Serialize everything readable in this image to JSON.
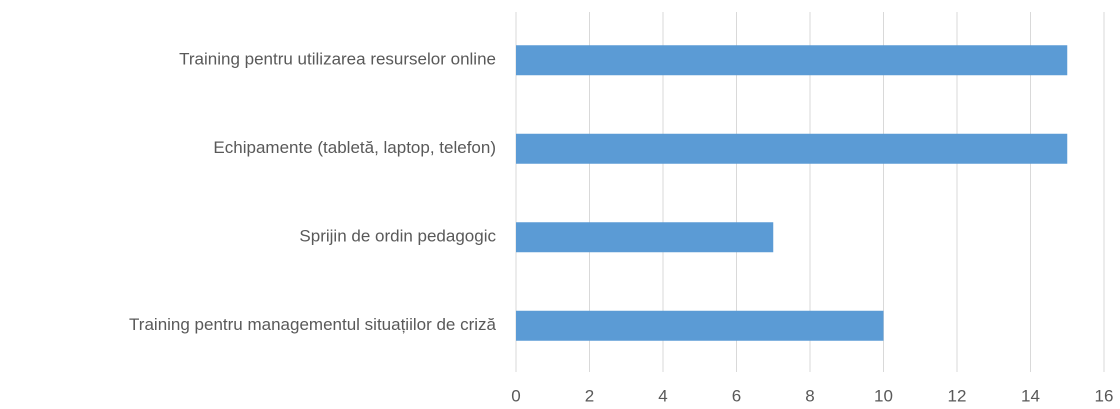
{
  "chart_data": {
    "type": "bar",
    "orientation": "horizontal",
    "categories": [
      "Training pentru utilizarea resurselor online",
      "Echipamente (tabletă, laptop, telefon)",
      "Sprijin de ordin pedagogic",
      "Training pentru managementul situațiilor de criză"
    ],
    "values": [
      15,
      15,
      7,
      10
    ],
    "color": "#5b9bd5",
    "xlim": [
      0,
      16
    ],
    "xticks": [
      0,
      2,
      4,
      6,
      8,
      10,
      12,
      14,
      16
    ],
    "grid": true
  }
}
